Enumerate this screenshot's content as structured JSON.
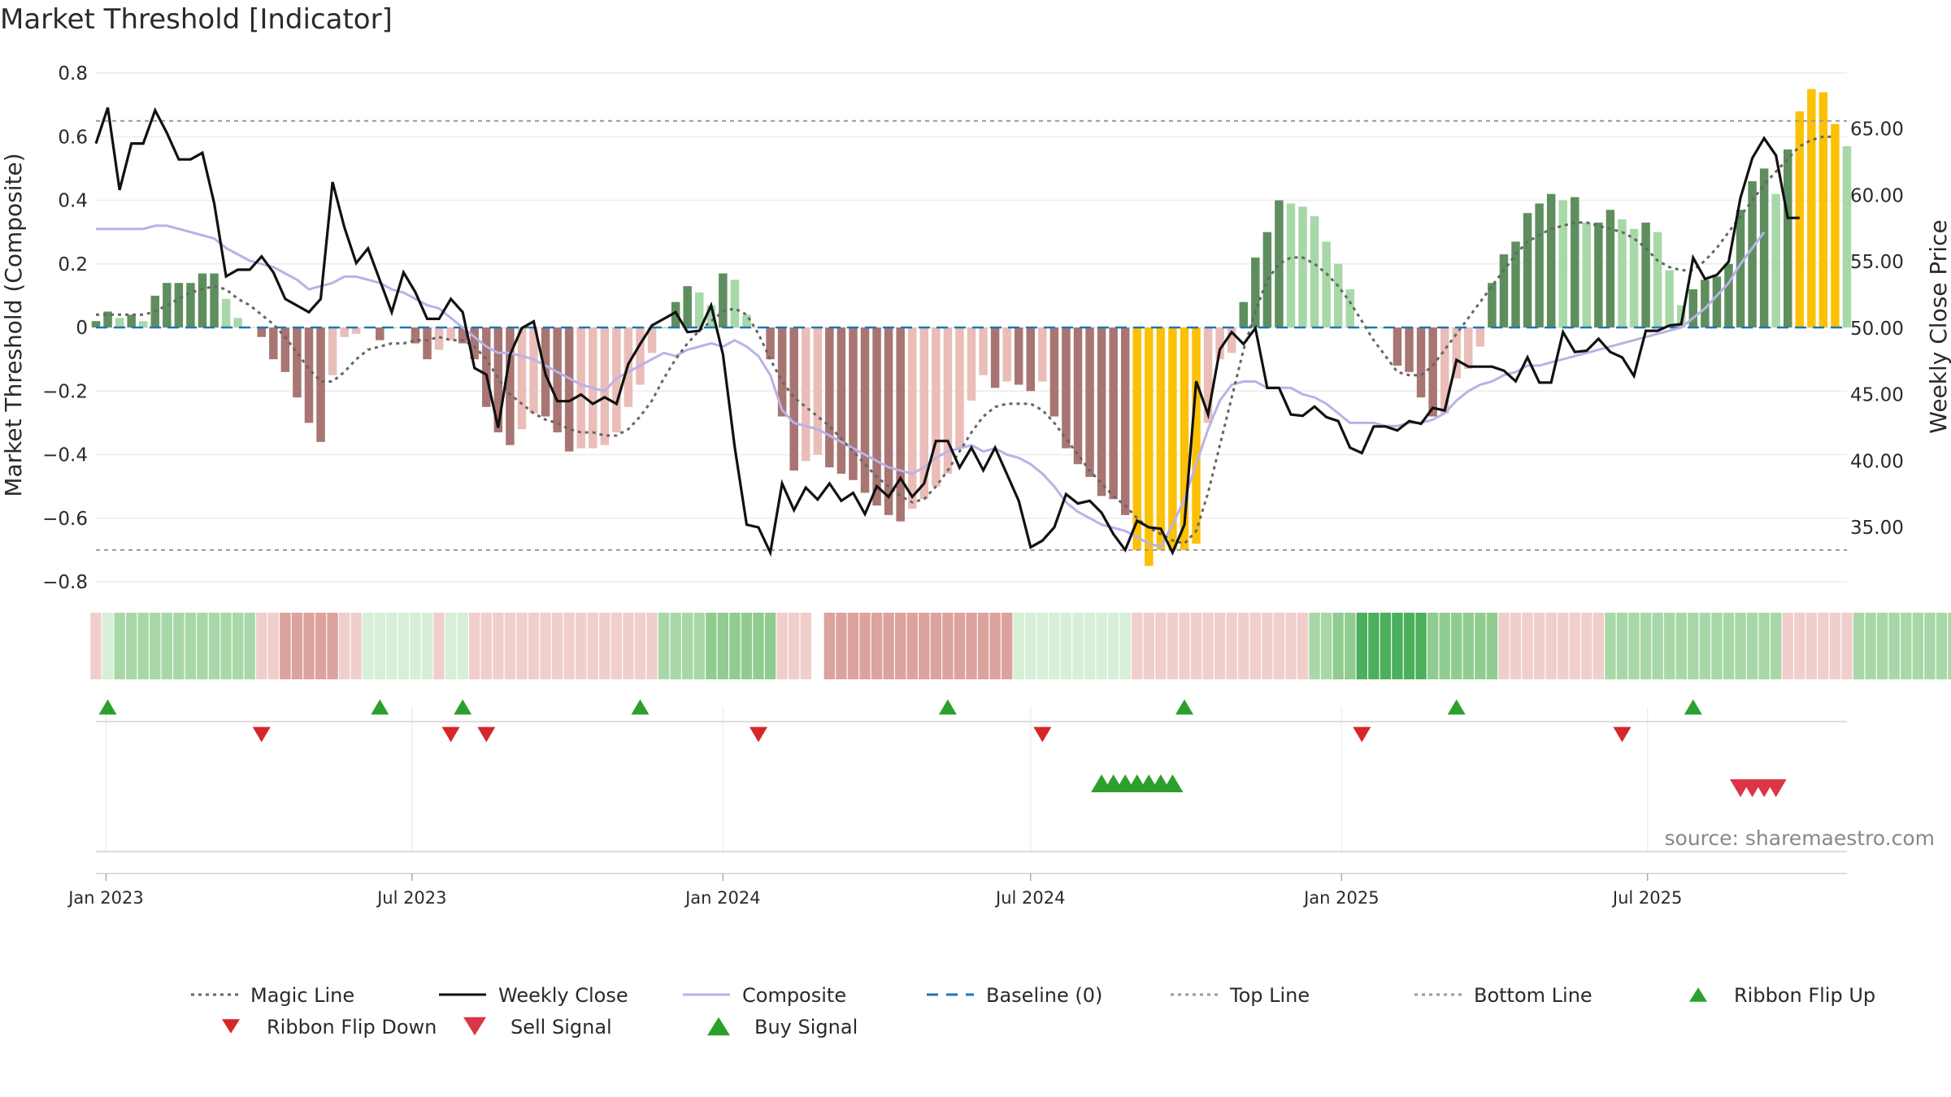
{
  "title": "Market Threshold [Indicator]",
  "source": "source: sharemaestro.com",
  "colors": {
    "bar_pos_strong": "#5e8e5e",
    "bar_pos_weak": "#a8d8a8",
    "bar_neg_strong": "#a87572",
    "bar_neg_weak": "#eabdb8",
    "bar_extreme": "#fcc107",
    "magic": "#666666",
    "close": "#111111",
    "composite": "#b9b2e6",
    "baseline": "#1f77b4",
    "topline": "#999999",
    "buy": "#2ca02c",
    "sell": "#d62728",
    "flip_up": "#2ca02c",
    "flip_down": "#d62728"
  },
  "chart_data": {
    "type": "bar",
    "title": "Market Threshold [Indicator]",
    "ylabel": "Market Threshold (Composite)",
    "y2label": "Weekly Close Price",
    "ylim": [
      -0.8,
      0.8
    ],
    "y2lim": [
      30.9,
      69.2
    ],
    "y_ticks": [
      "0.8",
      "0.6",
      "0.4",
      "0.2",
      "0",
      "−0.2",
      "−0.4",
      "−0.6",
      "−0.8"
    ],
    "y2_ticks": [
      "65.00",
      "60.00",
      "55.00",
      "50.00",
      "45.00",
      "40.00",
      "35.00"
    ],
    "x_ticks": [
      "Jan 2023",
      "Jul 2023",
      "Jan 2024",
      "Jul 2024",
      "Jan 2025",
      "Jul 2025"
    ],
    "x_start": "2022-12-26",
    "top_line": 0.65,
    "bottom_line": -0.7,
    "baseline": 0,
    "composite_bars": [
      0.02,
      0.05,
      0.03,
      0.04,
      0.02,
      0.1,
      0.14,
      0.14,
      0.14,
      0.17,
      0.17,
      0.09,
      0.03,
      0.0,
      -0.03,
      -0.1,
      -0.14,
      -0.22,
      -0.3,
      -0.36,
      -0.15,
      -0.03,
      -0.02,
      0.0,
      -0.04,
      0.0,
      0.0,
      -0.05,
      -0.1,
      -0.07,
      -0.04,
      -0.05,
      -0.1,
      -0.25,
      -0.33,
      -0.37,
      -0.32,
      -0.27,
      -0.28,
      -0.33,
      -0.39,
      -0.38,
      -0.38,
      -0.37,
      -0.33,
      -0.25,
      -0.18,
      -0.08,
      0.0,
      0.08,
      0.13,
      0.11,
      0.07,
      0.17,
      0.15,
      0.04,
      0.0,
      -0.1,
      -0.28,
      -0.45,
      -0.42,
      -0.4,
      -0.44,
      -0.46,
      -0.48,
      -0.52,
      -0.56,
      -0.59,
      -0.61,
      -0.57,
      -0.54,
      -0.5,
      -0.46,
      -0.38,
      -0.23,
      -0.15,
      -0.19,
      -0.17,
      -0.18,
      -0.2,
      -0.17,
      -0.28,
      -0.38,
      -0.43,
      -0.47,
      -0.53,
      -0.54,
      -0.59,
      -0.7,
      -0.75,
      -0.7,
      -0.7,
      -0.7,
      -0.68,
      -0.3,
      -0.1,
      -0.08,
      0.08,
      0.22,
      0.3,
      0.4,
      0.39,
      0.38,
      0.35,
      0.27,
      0.2,
      0.12,
      0.0,
      0.0,
      0.0,
      -0.12,
      -0.14,
      -0.22,
      -0.28,
      -0.27,
      -0.16,
      -0.13,
      -0.06,
      0.14,
      0.23,
      0.27,
      0.36,
      0.39,
      0.42,
      0.4,
      0.41,
      0.33,
      0.33,
      0.37,
      0.34,
      0.31,
      0.33,
      0.3,
      0.18,
      0.07,
      0.12,
      0.15,
      0.16,
      0.2,
      0.37,
      0.46,
      0.5,
      0.42,
      0.56,
      0.68,
      0.75,
      0.74,
      0.64,
      0.57
    ],
    "magic_line": [
      0.04,
      0.04,
      0.04,
      0.04,
      0.04,
      0.05,
      0.07,
      0.09,
      0.11,
      0.12,
      0.13,
      0.12,
      0.09,
      0.07,
      0.04,
      0.01,
      -0.03,
      -0.08,
      -0.13,
      -0.17,
      -0.17,
      -0.14,
      -0.1,
      -0.07,
      -0.06,
      -0.05,
      -0.05,
      -0.04,
      -0.04,
      -0.03,
      -0.04,
      -0.04,
      -0.06,
      -0.1,
      -0.16,
      -0.21,
      -0.24,
      -0.27,
      -0.29,
      -0.3,
      -0.32,
      -0.33,
      -0.33,
      -0.34,
      -0.34,
      -0.32,
      -0.28,
      -0.23,
      -0.16,
      -0.1,
      -0.05,
      -0.01,
      0.02,
      0.05,
      0.06,
      0.04,
      -0.02,
      -0.1,
      -0.17,
      -0.22,
      -0.25,
      -0.28,
      -0.31,
      -0.35,
      -0.39,
      -0.43,
      -0.47,
      -0.5,
      -0.53,
      -0.55,
      -0.54,
      -0.5,
      -0.45,
      -0.39,
      -0.33,
      -0.28,
      -0.25,
      -0.24,
      -0.24,
      -0.24,
      -0.26,
      -0.3,
      -0.35,
      -0.4,
      -0.45,
      -0.49,
      -0.53,
      -0.56,
      -0.6,
      -0.63,
      -0.65,
      -0.67,
      -0.68,
      -0.64,
      -0.52,
      -0.37,
      -0.22,
      -0.07,
      0.05,
      0.15,
      0.2,
      0.22,
      0.22,
      0.2,
      0.17,
      0.13,
      0.08,
      0.02,
      -0.04,
      -0.09,
      -0.14,
      -0.15,
      -0.15,
      -0.12,
      -0.07,
      -0.02,
      0.03,
      0.08,
      0.13,
      0.18,
      0.23,
      0.27,
      0.29,
      0.31,
      0.32,
      0.33,
      0.33,
      0.32,
      0.31,
      0.3,
      0.28,
      0.25,
      0.21,
      0.19,
      0.18,
      0.18,
      0.21,
      0.25,
      0.3,
      0.35,
      0.4,
      0.45,
      0.49,
      0.53,
      0.57,
      0.59,
      0.6,
      0.6
    ],
    "composite_line": [
      0.31,
      0.31,
      0.31,
      0.31,
      0.31,
      0.32,
      0.32,
      0.31,
      0.3,
      0.29,
      0.28,
      0.25,
      0.23,
      0.21,
      0.2,
      0.19,
      0.17,
      0.15,
      0.12,
      0.13,
      0.14,
      0.16,
      0.16,
      0.15,
      0.14,
      0.12,
      0.11,
      0.09,
      0.07,
      0.06,
      0.03,
      0.0,
      -0.03,
      -0.06,
      -0.08,
      -0.08,
      -0.09,
      -0.1,
      -0.12,
      -0.14,
      -0.16,
      -0.18,
      -0.19,
      -0.2,
      -0.16,
      -0.14,
      -0.12,
      -0.1,
      -0.08,
      -0.09,
      -0.07,
      -0.06,
      -0.05,
      -0.06,
      -0.04,
      -0.06,
      -0.09,
      -0.15,
      -0.26,
      -0.3,
      -0.31,
      -0.32,
      -0.34,
      -0.36,
      -0.38,
      -0.4,
      -0.42,
      -0.44,
      -0.45,
      -0.46,
      -0.44,
      -0.41,
      -0.39,
      -0.38,
      -0.37,
      -0.39,
      -0.38,
      -0.4,
      -0.41,
      -0.43,
      -0.46,
      -0.5,
      -0.55,
      -0.58,
      -0.6,
      -0.62,
      -0.63,
      -0.64,
      -0.66,
      -0.68,
      -0.69,
      -0.62,
      -0.54,
      -0.43,
      -0.32,
      -0.23,
      -0.18,
      -0.17,
      -0.17,
      -0.19,
      -0.19,
      -0.19,
      -0.21,
      -0.22,
      -0.24,
      -0.27,
      -0.3,
      -0.3,
      -0.3,
      -0.31,
      -0.31,
      -0.3,
      -0.3,
      -0.29,
      -0.27,
      -0.23,
      -0.2,
      -0.18,
      -0.17,
      -0.15,
      -0.14,
      -0.12,
      -0.12,
      -0.11,
      -0.1,
      -0.09,
      -0.08,
      -0.07,
      -0.06,
      -0.05,
      -0.04,
      -0.03,
      -0.02,
      -0.01,
      0.0,
      0.03,
      0.06,
      0.1,
      0.14,
      0.2,
      0.25,
      0.3
    ],
    "weekly_close": [
      63.9,
      66.6,
      60.4,
      63.9,
      63.9,
      66.4,
      64.7,
      62.7,
      62.7,
      63.2,
      59.4,
      53.9,
      54.4,
      54.4,
      55.4,
      54.2,
      52.2,
      51.7,
      51.2,
      52.2,
      61.0,
      57.6,
      54.9,
      56.0,
      53.6,
      51.2,
      54.2,
      52.7,
      50.7,
      50.7,
      52.2,
      51.2,
      47.0,
      46.5,
      42.5,
      48.0,
      50.0,
      50.5,
      46.5,
      44.5,
      44.5,
      45.0,
      44.3,
      44.8,
      44.3,
      47.3,
      48.8,
      50.2,
      50.7,
      51.2,
      49.7,
      49.8,
      51.7,
      48.0,
      41.0,
      35.2,
      35.0,
      33.1,
      38.3,
      36.3,
      38.0,
      37.1,
      38.3,
      37.0,
      37.6,
      36.0,
      38.1,
      37.3,
      38.7,
      37.3,
      38.3,
      41.5,
      41.5,
      39.5,
      41.0,
      39.3,
      41.0,
      39.0,
      37.0,
      33.5,
      34.0,
      35.0,
      37.5,
      36.8,
      37.0,
      36.1,
      34.5,
      33.3,
      35.5,
      35.0,
      34.9,
      33.1,
      35.2,
      46.0,
      43.5,
      48.4,
      49.7,
      48.8,
      50.0,
      45.5,
      45.5,
      43.5,
      43.4,
      44.1,
      43.3,
      43.0,
      41.0,
      40.6,
      42.6,
      42.6,
      42.3,
      43.0,
      42.8,
      44.0,
      43.8,
      47.6,
      47.1,
      47.1,
      47.1,
      46.8,
      46.0,
      47.8,
      45.9,
      45.9,
      49.7,
      48.2,
      48.3,
      49.2,
      48.2,
      47.8,
      46.4,
      49.8,
      49.8,
      50.2,
      50.3,
      55.3,
      53.7,
      54.0,
      55.0,
      59.8,
      62.8,
      64.3,
      63.0,
      58.3,
      58.3
    ],
    "ribbon": [
      -1,
      1,
      2,
      2,
      2,
      2,
      2,
      2,
      2,
      2,
      2,
      2,
      2,
      2,
      -1,
      -1,
      -2,
      -2,
      -2,
      -2,
      -2,
      -1,
      -1,
      1,
      1,
      1,
      1,
      1,
      1,
      -1,
      1,
      1,
      -1,
      -1,
      -1,
      -1,
      -1,
      -1,
      -1,
      -1,
      -1,
      -1,
      -1,
      -1,
      -1,
      -1,
      -1,
      -1,
      2,
      2,
      2,
      2,
      3,
      3,
      3,
      3,
      3,
      3,
      -1,
      -1,
      -1,
      0,
      -2,
      -2,
      -2,
      -2,
      -2,
      -2,
      -2,
      -2,
      -2,
      -2,
      -2,
      -2,
      -2,
      -2,
      -2,
      -2,
      1,
      1,
      1,
      1,
      1,
      1,
      1,
      1,
      1,
      1,
      -1,
      -1,
      -1,
      -1,
      -1,
      -1,
      -1,
      -1,
      -1,
      -1,
      -1,
      -1,
      -1,
      -1,
      -1,
      2,
      2,
      3,
      3,
      4,
      4,
      4,
      4,
      4,
      4,
      3,
      3,
      3,
      3,
      3,
      3,
      -1,
      -1,
      -1,
      -1,
      -1,
      -1,
      -1,
      -1,
      -1,
      2,
      2,
      2,
      2,
      2,
      2,
      2,
      2,
      2,
      2,
      2,
      2,
      2,
      2,
      2,
      -1,
      -1,
      -1,
      -1,
      -1,
      -1,
      2,
      2,
      2,
      2,
      2,
      2,
      2,
      2,
      2,
      2,
      2
    ],
    "ribbon_flip_up_weeks": [
      1,
      24,
      31,
      46,
      72,
      92,
      115,
      135
    ],
    "ribbon_flip_down_weeks": [
      14,
      30,
      33,
      56,
      80,
      107,
      129
    ],
    "buy_signal_weeks": [
      85,
      86,
      87,
      88,
      89,
      90,
      91
    ],
    "sell_signal_weeks": [
      139,
      140,
      141,
      142
    ]
  },
  "legend": [
    {
      "label": "Magic Line",
      "style": "dotted",
      "color": "#666666"
    },
    {
      "label": "Weekly Close",
      "style": "solid",
      "color": "#111111"
    },
    {
      "label": "Composite",
      "style": "solid",
      "color": "#b9b2e6"
    },
    {
      "label": "Baseline (0)",
      "style": "dashed",
      "color": "#1f77b4"
    },
    {
      "label": "Top Line",
      "style": "dotted",
      "color": "#999999"
    },
    {
      "label": "Bottom Line",
      "style": "dotted",
      "color": "#999999"
    },
    {
      "label": "Ribbon Flip Up",
      "style": "tri-up",
      "color": "#2ca02c"
    },
    {
      "label": "Ribbon Flip Down",
      "style": "tri-down",
      "color": "#d62728"
    },
    {
      "label": "Sell Signal",
      "style": "tri-down-big",
      "color": "#dc3545"
    },
    {
      "label": "Buy Signal",
      "style": "tri-up-big",
      "color": "#2ca02c"
    }
  ]
}
